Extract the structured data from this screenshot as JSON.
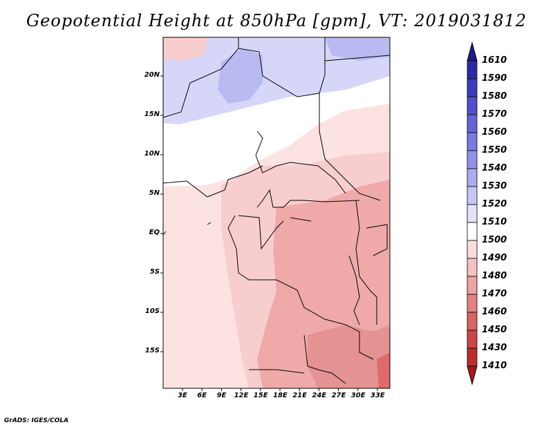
{
  "title": "Geopotential Height at 850hPa [gpm], VT: 2019031812",
  "credit": "GrADS: IGES/COLA",
  "lat_labels": [
    "20N",
    "15N",
    "10N",
    "5N",
    "EQ",
    "5S",
    "10S",
    "15S"
  ],
  "lon_labels": [
    "3E",
    "6E",
    "9E",
    "12E",
    "15E",
    "18E",
    "21E",
    "24E",
    "27E",
    "30E",
    "33E"
  ],
  "colorbar": {
    "labels": [
      "1610",
      "1590",
      "1580",
      "1570",
      "1560",
      "1550",
      "1540",
      "1530",
      "1520",
      "1510",
      "1500",
      "1490",
      "1480",
      "1470",
      "1460",
      "1450",
      "1430",
      "1410"
    ],
    "colors": [
      "#1e1a8c",
      "#2a2aa8",
      "#3c3cbd",
      "#5050cc",
      "#6464d8",
      "#7a7ae2",
      "#9292ea",
      "#aaaaf0",
      "#c6c6f6",
      "#e2e2fb",
      "#ffffff",
      "#fcdcdc",
      "#f6c0c0",
      "#eea2a2",
      "#e48282",
      "#d86464",
      "#cc4646",
      "#be2c2c",
      "#a81818"
    ]
  },
  "field_colors": {
    "blue_light": "#d6d6f8",
    "blue_mid": "#babaf2",
    "white": "#ffffff",
    "pink_light": "#fde2e2",
    "pink_mid": "#f8cdcd",
    "pink_strong": "#efa9a9",
    "pink_dark": "#e49292",
    "red": "#e06a6a"
  }
}
